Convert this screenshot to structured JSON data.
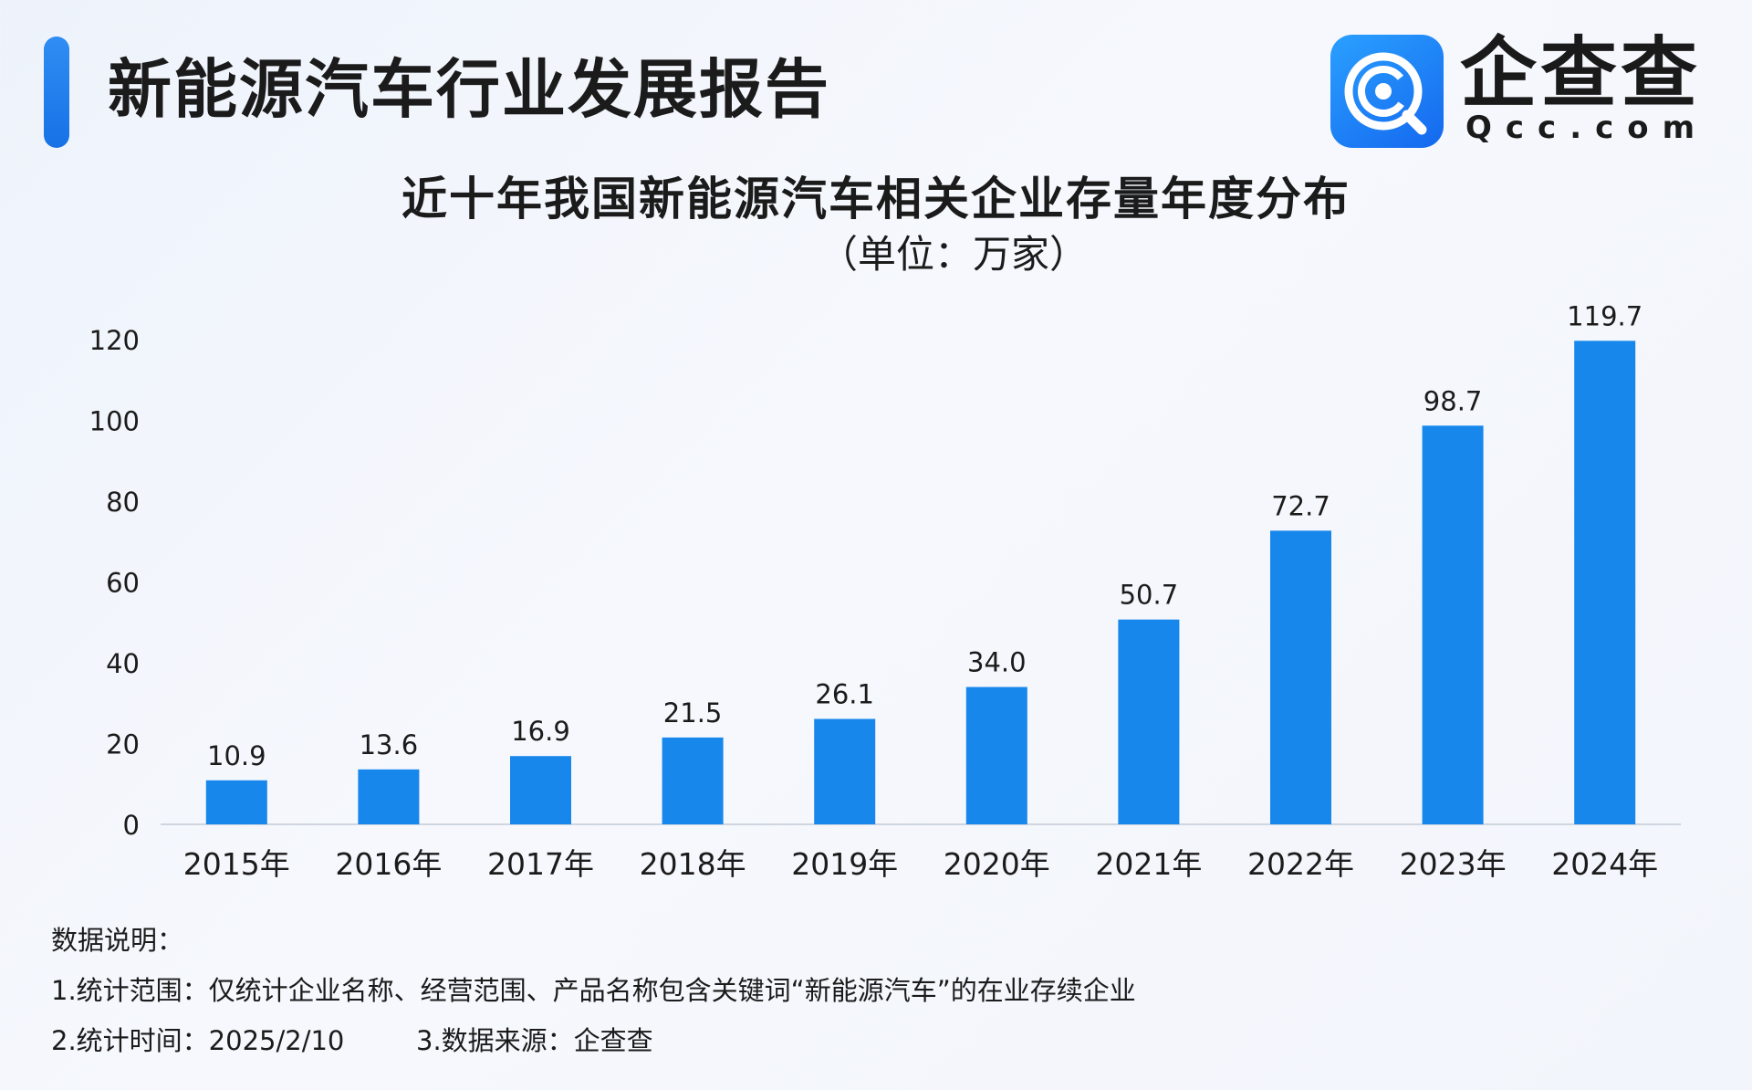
{
  "header": {
    "report_title": "新能源汽车行业发展报告",
    "logo_name": "企查查",
    "logo_domain": "Qcc.com",
    "logo_icon": "qcc-magnifier-icon",
    "accent_color": "#1a7ff0"
  },
  "chart_data": {
    "type": "bar",
    "title": "近十年我国新能源汽车相关企业存量年度分布",
    "subtitle": "（单位：万家）",
    "categories": [
      "2015年",
      "2016年",
      "2017年",
      "2018年",
      "2019年",
      "2020年",
      "2021年",
      "2022年",
      "2023年",
      "2024年"
    ],
    "values": [
      10.9,
      13.6,
      16.9,
      21.5,
      26.1,
      34.0,
      50.7,
      72.7,
      98.7,
      119.7
    ],
    "value_labels": [
      "10.9",
      "13.6",
      "16.9",
      "21.5",
      "26.1",
      "34.0",
      "50.7",
      "72.7",
      "98.7",
      "119.7"
    ],
    "ylim": [
      0,
      120
    ],
    "yticks": [
      0,
      20,
      40,
      60,
      80,
      100,
      120
    ],
    "xlabel": "",
    "ylabel": "",
    "grid": false,
    "legend": "none",
    "bar_color": "#1787ec"
  },
  "notes": {
    "heading": "数据说明：",
    "scope": "1.统计范围：仅统计企业名称、经营范围、产品名称包含关键词“新能源汽车”的在业存续企业",
    "time": "2.统计时间：2025/2/10",
    "source": "3.数据来源：企查查"
  }
}
